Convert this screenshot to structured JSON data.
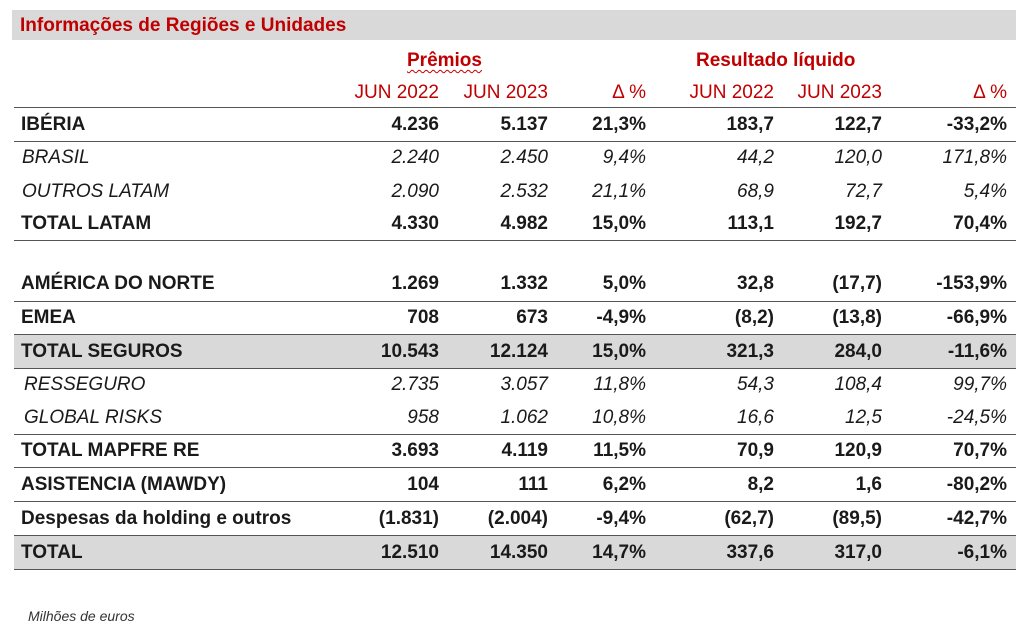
{
  "title": "Informações de Regiões e Unidades",
  "groups": {
    "premios": "Prêmios",
    "resultado": "Resultado líquido"
  },
  "columns": [
    "JUN 2022",
    "JUN 2023",
    "Δ %",
    "JUN 2022",
    "JUN 2023",
    "Δ %"
  ],
  "rows": [
    {
      "label": "IBÉRIA",
      "values": [
        "4.236",
        "5.137",
        "21,3%",
        "183,7",
        "122,7",
        "-33,2%"
      ]
    },
    {
      "label": "BRASIL",
      "values": [
        "2.240",
        "2.450",
        "9,4%",
        "44,2",
        "120,0",
        "171,8%"
      ]
    },
    {
      "label": "OUTROS LATAM",
      "values": [
        "2.090",
        "2.532",
        "21,1%",
        "68,9",
        "72,7",
        "5,4%"
      ]
    },
    {
      "label": "TOTAL LATAM",
      "values": [
        "4.330",
        "4.982",
        "15,0%",
        "113,1",
        "192,7",
        "70,4%"
      ]
    },
    {
      "label": "AMÉRICA DO NORTE",
      "values": [
        "1.269",
        "1.332",
        "5,0%",
        "32,8",
        "(17,7)",
        "-153,9%"
      ]
    },
    {
      "label": "EMEA",
      "values": [
        "708",
        "673",
        "-4,9%",
        "(8,2)",
        "(13,8)",
        "-66,9%"
      ]
    },
    {
      "label": "TOTAL SEGUROS",
      "values": [
        "10.543",
        "12.124",
        "15,0%",
        "321,3",
        "284,0",
        "-11,6%"
      ]
    },
    {
      "label": "RESSEGURO",
      "values": [
        "2.735",
        "3.057",
        "11,8%",
        "54,3",
        "108,4",
        "99,7%"
      ]
    },
    {
      "label": "GLOBAL RISKS",
      "values": [
        "958",
        "1.062",
        "10,8%",
        "16,6",
        "12,5",
        "-24,5%"
      ]
    },
    {
      "label": "TOTAL MAPFRE RE",
      "values": [
        "3.693",
        "4.119",
        "11,5%",
        "70,9",
        "120,9",
        "70,7%"
      ]
    },
    {
      "label": "ASISTENCIA (MAWDY)",
      "values": [
        "104",
        "111",
        "6,2%",
        "8,2",
        "1,6",
        "-80,2%"
      ]
    },
    {
      "label": "Despesas da holding e outros",
      "values": [
        "(1.831)",
        "(2.004)",
        "-9,4%",
        "(62,7)",
        "(89,5)",
        "-42,7%"
      ]
    },
    {
      "label": "TOTAL",
      "values": [
        "12.510",
        "14.350",
        "14,7%",
        "337,6",
        "317,0",
        "-6,1%"
      ]
    }
  ],
  "footnote": "Milhões de euros"
}
